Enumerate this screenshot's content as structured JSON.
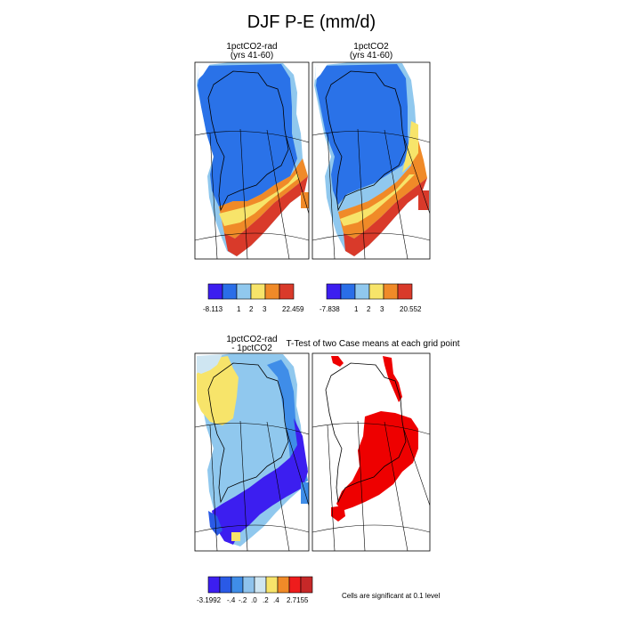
{
  "figure": {
    "title": "DJF P-E (mm/d)"
  },
  "panels": {
    "top_left": {
      "title_line1": "1pctCO2-rad",
      "title_line2": "(yrs 41-60)"
    },
    "top_right": {
      "title_line1": "1pctCO2",
      "title_line2": "(yrs 41-60)"
    },
    "bottom_left": {
      "title_line1": "1pctCO2-rad",
      "title_line2": "- 1pctCO2"
    },
    "bottom_right": {
      "title": "T-Test of two Case means at each grid point",
      "footnote": "Cells are significant at 0.1 level"
    }
  },
  "colorbars": {
    "top_left": {
      "colors": [
        "#3c1ef0",
        "#2a6ee8",
        "#90c8ee",
        "#f7e46a",
        "#f08a28",
        "#d93a2a"
      ],
      "labels": [
        "-8.113",
        "1",
        "2",
        "3",
        "22.459"
      ]
    },
    "top_right": {
      "colors": [
        "#3c1ef0",
        "#2a6ee8",
        "#90c8ee",
        "#f7e46a",
        "#f08a28",
        "#d93a2a"
      ],
      "labels": [
        "-7.838",
        "1",
        "2",
        "3",
        "20.552"
      ]
    },
    "bottom": {
      "colors": [
        "#3c1ef0",
        "#2a5ae6",
        "#3f8de8",
        "#8fc3ec",
        "#cfe6f2",
        "#f7e46a",
        "#f08a28",
        "#ee1c1c",
        "#c62828"
      ],
      "labels": [
        "-3.1992",
        "-.4",
        "-.2",
        ".0",
        ".2",
        ".4",
        "2.7155"
      ]
    }
  },
  "map_colors": {
    "dark_blue": "#2a72e8",
    "light_blue": "#90c8ee",
    "yellow": "#f7e46a",
    "orange": "#f08a28",
    "red": "#d93a2a",
    "violet": "#3c1ef0",
    "significant": "#ee0000"
  }
}
